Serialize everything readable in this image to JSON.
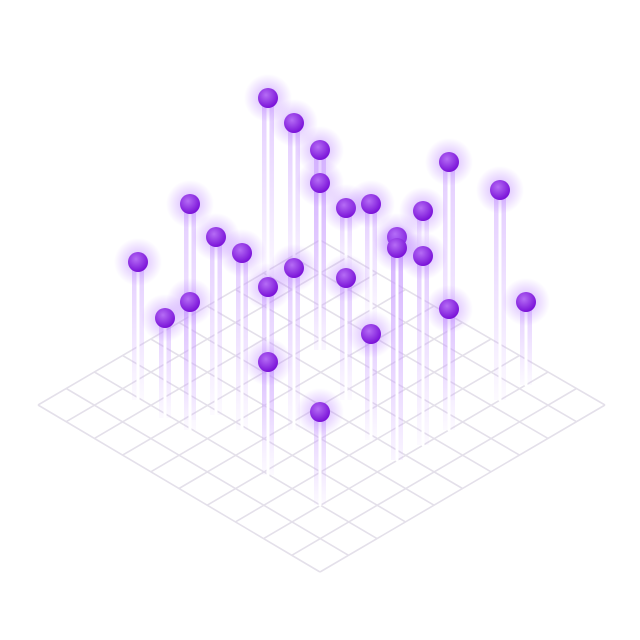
{
  "illustration": {
    "colors": {
      "background": "#ffffff",
      "grid_line": "#e4e0ea",
      "pole": "#ffffff",
      "sphere": "#8a1ee8",
      "sphere_highlight": "#b56cf5",
      "glow": "#b070ff"
    },
    "grid_divisions": 10,
    "sphere_count": 26
  }
}
